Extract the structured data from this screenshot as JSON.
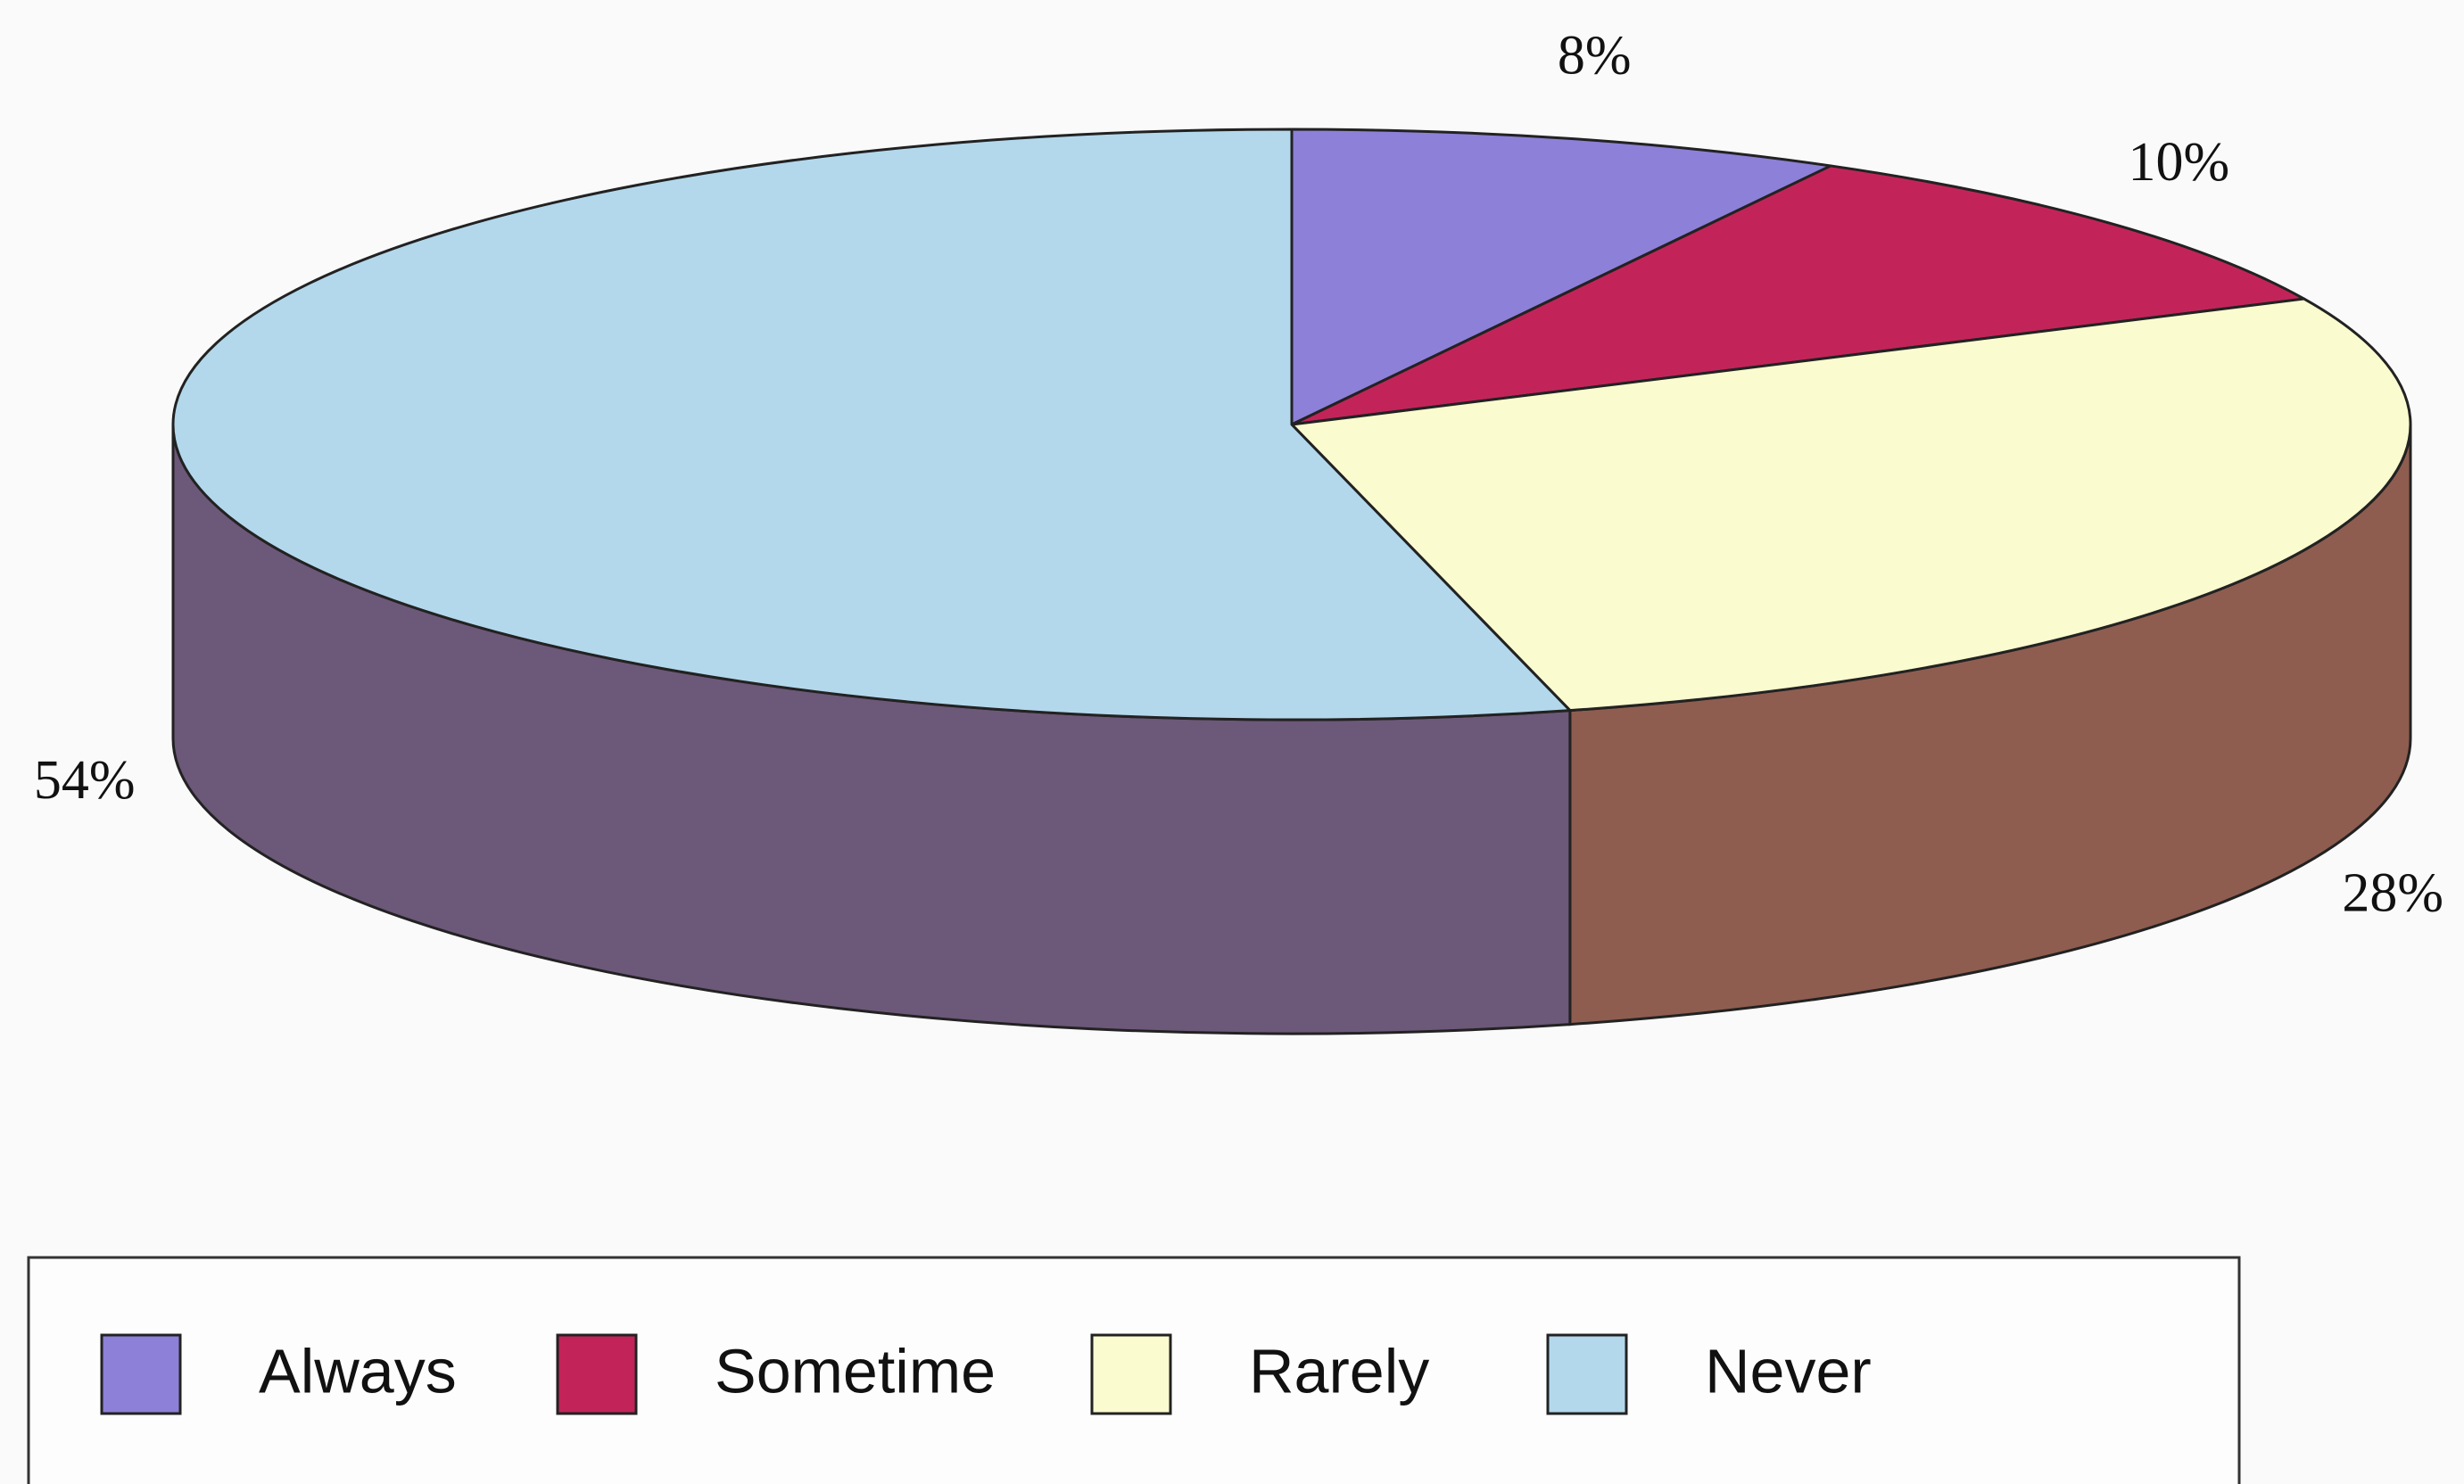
{
  "chart_data": {
    "type": "pie3d",
    "categories": [
      "Always",
      "Sometime",
      "Rarely",
      "Never"
    ],
    "values": [
      8,
      10,
      28,
      54
    ],
    "value_labels": [
      "8%",
      "10%",
      "28%",
      "54%"
    ],
    "colors": [
      "#8d80d8",
      "#c2245a",
      "#fbfbd0",
      "#b3d8ec"
    ],
    "side_colors": [
      "#5f5690",
      "#7d1a3d",
      "#8e5d50",
      "#6c5878"
    ],
    "legend": "bottom"
  }
}
